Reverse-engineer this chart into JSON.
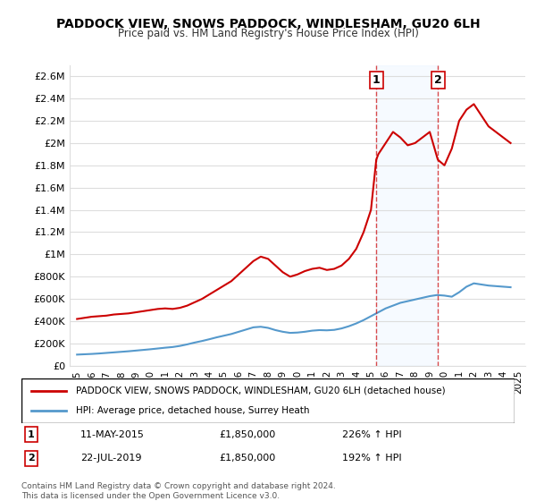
{
  "title": "PADDOCK VIEW, SNOWS PADDOCK, WINDLESHAM, GU20 6LH",
  "subtitle": "Price paid vs. HM Land Registry's House Price Index (HPI)",
  "legend_line1": "PADDOCK VIEW, SNOWS PADDOCK, WINDLESHAM, GU20 6LH (detached house)",
  "legend_line2": "HPI: Average price, detached house, Surrey Heath",
  "annotation1": {
    "label": "1",
    "date": "11-MAY-2015",
    "price": "£1,850,000",
    "hpi": "226% ↑ HPI",
    "x_year": 2015.36
  },
  "annotation2": {
    "label": "2",
    "date": "22-JUL-2019",
    "price": "£1,850,000",
    "hpi": "192% ↑ HPI",
    "x_year": 2019.55
  },
  "footer1": "Contains HM Land Registry data © Crown copyright and database right 2024.",
  "footer2": "This data is licensed under the Open Government Licence v3.0.",
  "red_line_color": "#cc0000",
  "blue_line_color": "#5599cc",
  "shaded_color": "#ddeeff",
  "background_color": "#ffffff",
  "grid_color": "#dddddd",
  "ylim": [
    0,
    2700000
  ],
  "xlim_start": 1994.5,
  "xlim_end": 2025.5,
  "yticks": [
    0,
    200000,
    400000,
    600000,
    800000,
    1000000,
    1200000,
    1400000,
    1600000,
    1800000,
    2000000,
    2200000,
    2400000,
    2600000
  ],
  "ytick_labels": [
    "£0",
    "£200K",
    "£400K",
    "£600K",
    "£800K",
    "£1M",
    "£1.2M",
    "£1.4M",
    "£1.6M",
    "£1.8M",
    "£2M",
    "£2.2M",
    "£2.4M",
    "£2.6M"
  ],
  "xticks": [
    1995,
    1996,
    1997,
    1998,
    1999,
    2000,
    2001,
    2002,
    2003,
    2004,
    2005,
    2006,
    2007,
    2008,
    2009,
    2010,
    2011,
    2012,
    2013,
    2014,
    2015,
    2016,
    2017,
    2018,
    2019,
    2020,
    2021,
    2022,
    2023,
    2024,
    2025
  ],
  "red_x": [
    1995.0,
    1995.5,
    1996.0,
    1996.5,
    1997.0,
    1997.5,
    1998.0,
    1998.5,
    1999.0,
    1999.5,
    2000.0,
    2000.5,
    2001.0,
    2001.5,
    2002.0,
    2002.5,
    2003.0,
    2003.5,
    2004.0,
    2004.5,
    2005.0,
    2005.5,
    2006.0,
    2006.5,
    2007.0,
    2007.5,
    2008.0,
    2008.5,
    2009.0,
    2009.5,
    2010.0,
    2010.5,
    2011.0,
    2011.5,
    2012.0,
    2012.5,
    2013.0,
    2013.5,
    2014.0,
    2014.5,
    2015.0,
    2015.36,
    2015.5,
    2016.0,
    2016.5,
    2017.0,
    2017.5,
    2018.0,
    2018.5,
    2019.0,
    2019.55,
    2020.0,
    2020.5,
    2021.0,
    2021.5,
    2022.0,
    2022.5,
    2023.0,
    2023.5,
    2024.0,
    2024.5
  ],
  "red_y": [
    420000,
    430000,
    440000,
    445000,
    450000,
    460000,
    465000,
    470000,
    480000,
    490000,
    500000,
    510000,
    515000,
    510000,
    520000,
    540000,
    570000,
    600000,
    640000,
    680000,
    720000,
    760000,
    820000,
    880000,
    940000,
    980000,
    960000,
    900000,
    840000,
    800000,
    820000,
    850000,
    870000,
    880000,
    860000,
    870000,
    900000,
    960000,
    1050000,
    1200000,
    1400000,
    1850000,
    1900000,
    2000000,
    2100000,
    2050000,
    1980000,
    2000000,
    2050000,
    2100000,
    1850000,
    1800000,
    1950000,
    2200000,
    2300000,
    2350000,
    2250000,
    2150000,
    2100000,
    2050000,
    2000000
  ],
  "blue_x": [
    1995.0,
    1995.5,
    1996.0,
    1996.5,
    1997.0,
    1997.5,
    1998.0,
    1998.5,
    1999.0,
    1999.5,
    2000.0,
    2000.5,
    2001.0,
    2001.5,
    2002.0,
    2002.5,
    2003.0,
    2003.5,
    2004.0,
    2004.5,
    2005.0,
    2005.5,
    2006.0,
    2006.5,
    2007.0,
    2007.5,
    2008.0,
    2008.5,
    2009.0,
    2009.5,
    2010.0,
    2010.5,
    2011.0,
    2011.5,
    2012.0,
    2012.5,
    2013.0,
    2013.5,
    2014.0,
    2014.5,
    2015.0,
    2015.5,
    2016.0,
    2016.5,
    2017.0,
    2017.5,
    2018.0,
    2018.5,
    2019.0,
    2019.5,
    2020.0,
    2020.5,
    2021.0,
    2021.5,
    2022.0,
    2022.5,
    2023.0,
    2023.5,
    2024.0,
    2024.5
  ],
  "blue_y": [
    100000,
    103000,
    106000,
    110000,
    115000,
    120000,
    125000,
    130000,
    136000,
    142000,
    148000,
    155000,
    162000,
    168000,
    178000,
    192000,
    208000,
    222000,
    238000,
    255000,
    270000,
    285000,
    305000,
    325000,
    345000,
    350000,
    340000,
    320000,
    305000,
    295000,
    298000,
    305000,
    315000,
    320000,
    318000,
    322000,
    335000,
    355000,
    380000,
    410000,
    445000,
    480000,
    515000,
    540000,
    565000,
    580000,
    595000,
    610000,
    625000,
    635000,
    630000,
    620000,
    660000,
    710000,
    740000,
    730000,
    720000,
    715000,
    710000,
    705000
  ]
}
